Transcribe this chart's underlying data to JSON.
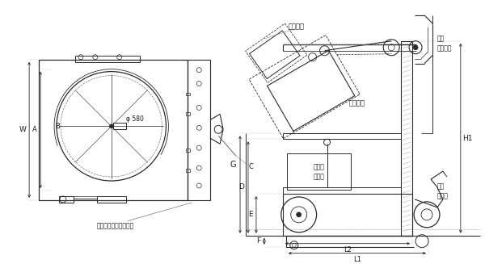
{
  "bg": "#ffffff",
  "lc": "#2a2a2a",
  "tc": "#1a1a1a",
  "figsize": [
    6.0,
    3.27
  ],
  "dpi": 100,
  "labels": {
    "phi": "φ 580",
    "w": "W",
    "a": "A",
    "b": "B",
    "c": "C",
    "drum_handle": "ドラム缶回転ハンドル",
    "chaku": "チャック",
    "skip": "スキップ",
    "hanten": "反転用\n減速機",
    "koka": "下降\nハンドル",
    "josho": "上昇\nペダル",
    "g": "G",
    "d": "D",
    "e": "E",
    "f": "F",
    "h1": "H1",
    "l1": "L1",
    "l2": "L2"
  }
}
